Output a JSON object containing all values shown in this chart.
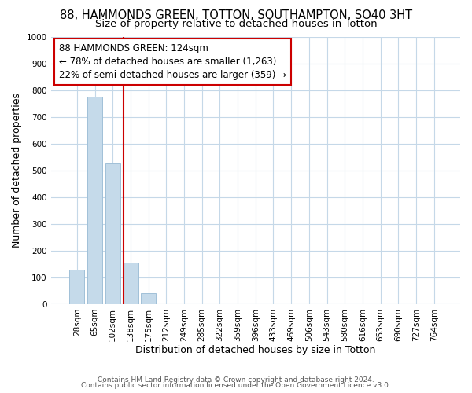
{
  "title": "88, HAMMONDS GREEN, TOTTON, SOUTHAMPTON, SO40 3HT",
  "subtitle": "Size of property relative to detached houses in Totton",
  "xlabel": "Distribution of detached houses by size in Totton",
  "ylabel": "Number of detached properties",
  "footnote1": "Contains HM Land Registry data © Crown copyright and database right 2024.",
  "footnote2": "Contains public sector information licensed under the Open Government Licence v3.0.",
  "categories": [
    "28sqm",
    "65sqm",
    "102sqm",
    "138sqm",
    "175sqm",
    "212sqm",
    "249sqm",
    "285sqm",
    "322sqm",
    "359sqm",
    "396sqm",
    "433sqm",
    "469sqm",
    "506sqm",
    "543sqm",
    "580sqm",
    "616sqm",
    "653sqm",
    "690sqm",
    "727sqm",
    "764sqm"
  ],
  "values": [
    130,
    775,
    525,
    155,
    40,
    0,
    0,
    0,
    0,
    0,
    0,
    0,
    0,
    0,
    0,
    0,
    0,
    0,
    0,
    0,
    0
  ],
  "bar_color": "#c5daea",
  "bar_edge_color": "#a0c0d8",
  "vline_color": "#cc0000",
  "vline_x": 2.61,
  "annotation_text": "88 HAMMONDS GREEN: 124sqm\n← 78% of detached houses are smaller (1,263)\n22% of semi-detached houses are larger (359) →",
  "annotation_box_color": "#cc0000",
  "ylim": [
    0,
    1000
  ],
  "yticks": [
    0,
    100,
    200,
    300,
    400,
    500,
    600,
    700,
    800,
    900,
    1000
  ],
  "background_color": "#ffffff",
  "plot_bg_color": "#ffffff",
  "grid_color": "#c5d8e8",
  "title_fontsize": 10.5,
  "subtitle_fontsize": 9.5,
  "axis_label_fontsize": 9,
  "tick_fontsize": 7.5,
  "annotation_fontsize": 8.5
}
